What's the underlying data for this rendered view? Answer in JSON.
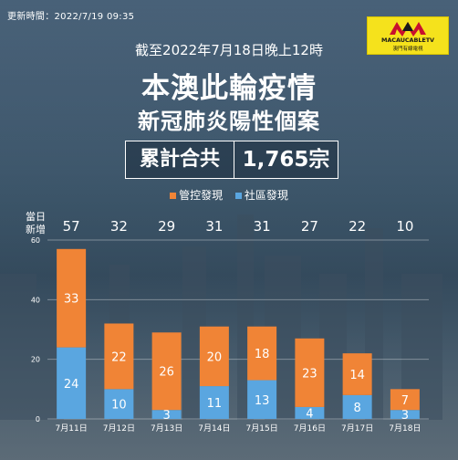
{
  "header": {
    "update_label": "更新時間：2022/7/19  09:35",
    "date_line": "截至2022年7月18日晚上12時",
    "title_line1": "本澳此輪疫情",
    "title_line2": "新冠肺炎陽性個案",
    "total_label": "累計合共",
    "total_value": "1,765宗"
  },
  "logo": {
    "brand": "MACAUCABLETV",
    "sub": "澳門有線電視"
  },
  "daily_label": "當日\n新增",
  "colors": {
    "control": "#f08436",
    "community": "#5aa6e0",
    "background": "#4d6a80"
  },
  "chart_data": {
    "type": "bar",
    "stacked": true,
    "categories": [
      "7月11日",
      "7月12日",
      "7月13日",
      "7月14日",
      "7月15日",
      "7月16日",
      "7月17日",
      "7月18日"
    ],
    "series": [
      {
        "name": "社區發現",
        "values": [
          24,
          10,
          3,
          11,
          13,
          4,
          8,
          3
        ]
      },
      {
        "name": "管控發現",
        "values": [
          33,
          22,
          26,
          20,
          18,
          23,
          14,
          7
        ]
      }
    ],
    "totals": [
      57,
      32,
      29,
      31,
      31,
      27,
      22,
      10
    ],
    "yticks": [
      0,
      20,
      40,
      60
    ],
    "ylim": [
      0,
      60
    ],
    "grid": true,
    "legend_position": "top-center"
  }
}
